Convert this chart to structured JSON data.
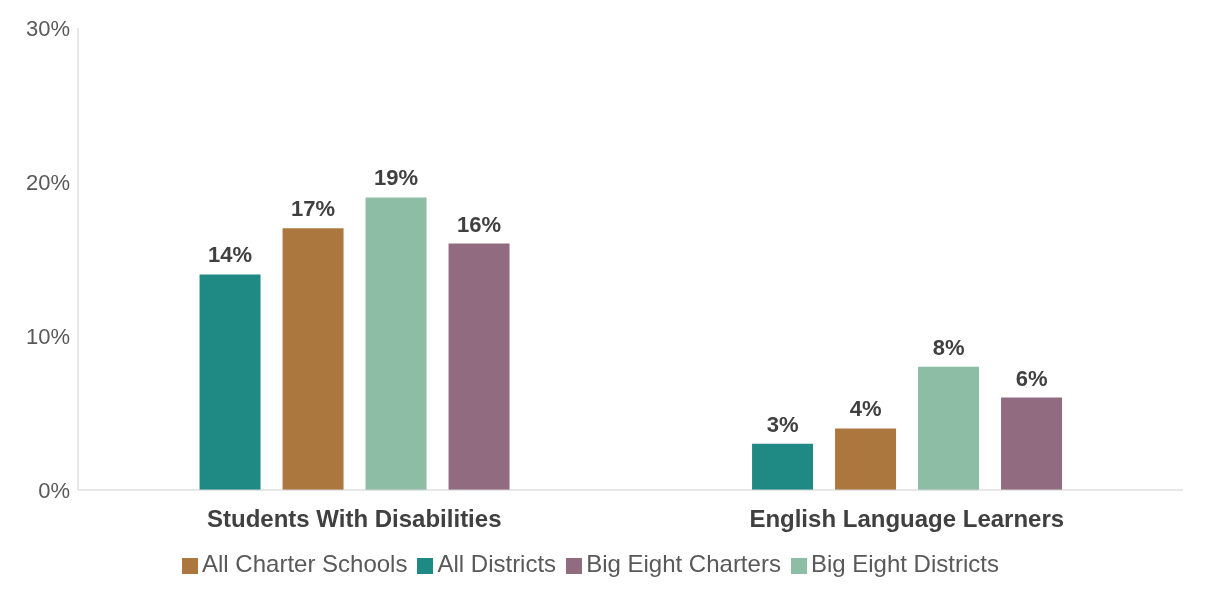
{
  "chart_data": {
    "type": "bar",
    "categories": [
      "Students With Disabilities",
      "English Language Learners"
    ],
    "series": [
      {
        "name": "All Districts",
        "color": "#1f8a84",
        "values": [
          14,
          3
        ],
        "value_labels": [
          "14%",
          "3%"
        ]
      },
      {
        "name": "All Charter Schools",
        "color": "#ab773f",
        "values": [
          17,
          4
        ],
        "value_labels": [
          "17%",
          "4%"
        ]
      },
      {
        "name": "Big Eight Districts",
        "color": "#8dbda4",
        "values": [
          19,
          8
        ],
        "value_labels": [
          "19%",
          "8%"
        ]
      },
      {
        "name": "Big Eight Charters",
        "color": "#916c80",
        "values": [
          16,
          6
        ],
        "value_labels": [
          "16%",
          "6%"
        ]
      }
    ],
    "ylim": [
      0,
      30
    ],
    "yticks": [
      {
        "value": 0,
        "label": "0%"
      },
      {
        "value": 10,
        "label": "10%"
      },
      {
        "value": 20,
        "label": "20%"
      },
      {
        "value": 30,
        "label": "30%"
      }
    ],
    "grid": false,
    "legend": "bottom"
  }
}
